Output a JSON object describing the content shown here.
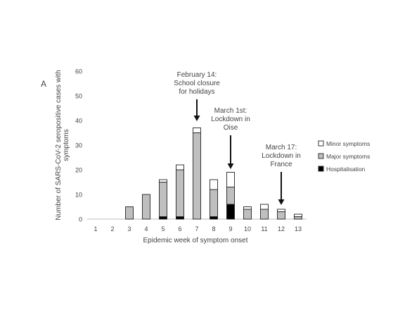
{
  "panel_label": "A",
  "chart_data": {
    "type": "bar",
    "stacked": true,
    "xlabel": "Epidemic week of symptom onset",
    "ylabel_lines": [
      "Number of SARS-CoV-2 seropositive cases with",
      "symptoms"
    ],
    "ylim": [
      0,
      60
    ],
    "yticks": [
      0,
      10,
      20,
      30,
      40,
      50,
      60
    ],
    "categories": [
      "1",
      "2",
      "3",
      "4",
      "5",
      "6",
      "7",
      "8",
      "9",
      "10",
      "11",
      "12",
      "13"
    ],
    "series": [
      {
        "name": "Hospitalisation",
        "color": "#000000",
        "values": [
          0,
          0,
          0,
          0,
          1,
          1,
          0,
          1,
          6,
          0,
          0,
          0,
          0
        ]
      },
      {
        "name": "Major symptoms",
        "color": "#bfbfbf",
        "values": [
          0,
          0,
          5,
          10,
          14,
          19,
          35,
          11,
          7,
          4,
          4,
          3,
          1
        ]
      },
      {
        "name": "Minor symptoms",
        "color": "#ffffff",
        "values": [
          0,
          0,
          0,
          0,
          1,
          2,
          2,
          4,
          6,
          1,
          2,
          1,
          1
        ]
      }
    ],
    "legend_position": "right",
    "grid": false,
    "annotations": [
      {
        "week": 7,
        "lines": [
          "February 14:",
          "School closure",
          "for holidays"
        ]
      },
      {
        "week": 9,
        "lines": [
          "March 1st:",
          "Lockdown in",
          "Oise"
        ]
      },
      {
        "week": 12,
        "lines": [
          "March 17:",
          "Lockdown in",
          "France"
        ]
      }
    ]
  }
}
